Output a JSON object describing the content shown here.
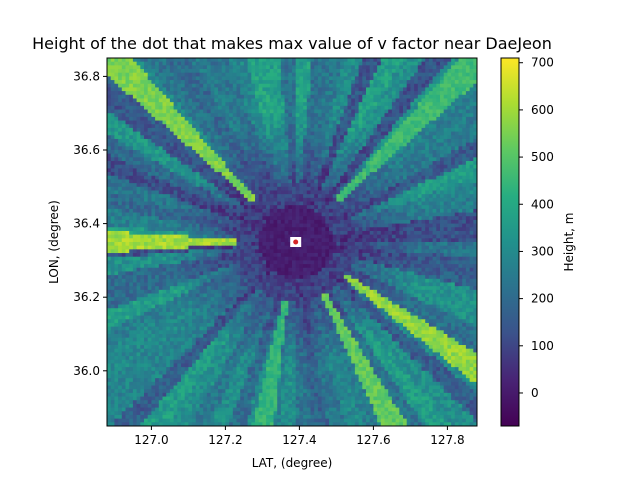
{
  "chart_data": {
    "type": "heatmap",
    "title": "Height of the dot that makes max value of v factor near DaeJeon",
    "xlabel": "LAT, (degree)",
    "ylabel": "LON, (degree)",
    "xlim": [
      126.88,
      127.88
    ],
    "ylim": [
      35.85,
      36.85
    ],
    "xticks": [
      127.0,
      127.2,
      127.4,
      127.6,
      127.8
    ],
    "xtick_labels": [
      "127.0",
      "127.2",
      "127.4",
      "127.6",
      "127.8"
    ],
    "yticks": [
      36.0,
      36.2,
      36.4,
      36.6,
      36.8
    ],
    "ytick_labels": [
      "36.0",
      "36.2",
      "36.4",
      "36.6",
      "36.8"
    ],
    "colorbar": {
      "label": "Height, m",
      "range": [
        -70,
        710
      ],
      "colormap": "viridis",
      "ticks": [
        0,
        100,
        200,
        300,
        400,
        500,
        600,
        700
      ],
      "tick_labels": [
        "0",
        "100",
        "200",
        "300",
        "400",
        "500",
        "600",
        "700"
      ]
    },
    "grid_resolution": [
      100,
      100
    ],
    "center_value": -20,
    "marker": {
      "lat": 127.39,
      "lon": 36.35,
      "color": "#d62728",
      "box_color": "#ffffff"
    },
    "features": [
      {
        "kind": "ray",
        "angle_deg": 180,
        "height": 650
      },
      {
        "kind": "ray",
        "angle_deg": 135,
        "height": 600
      },
      {
        "kind": "ray",
        "angle_deg": -35,
        "height": 630
      },
      {
        "kind": "ray",
        "angle_deg": -62,
        "height": 560
      },
      {
        "kind": "ray",
        "angle_deg": -100,
        "height": 480
      },
      {
        "kind": "ray",
        "angle_deg": 45,
        "height": 500
      }
    ],
    "grid": false
  }
}
